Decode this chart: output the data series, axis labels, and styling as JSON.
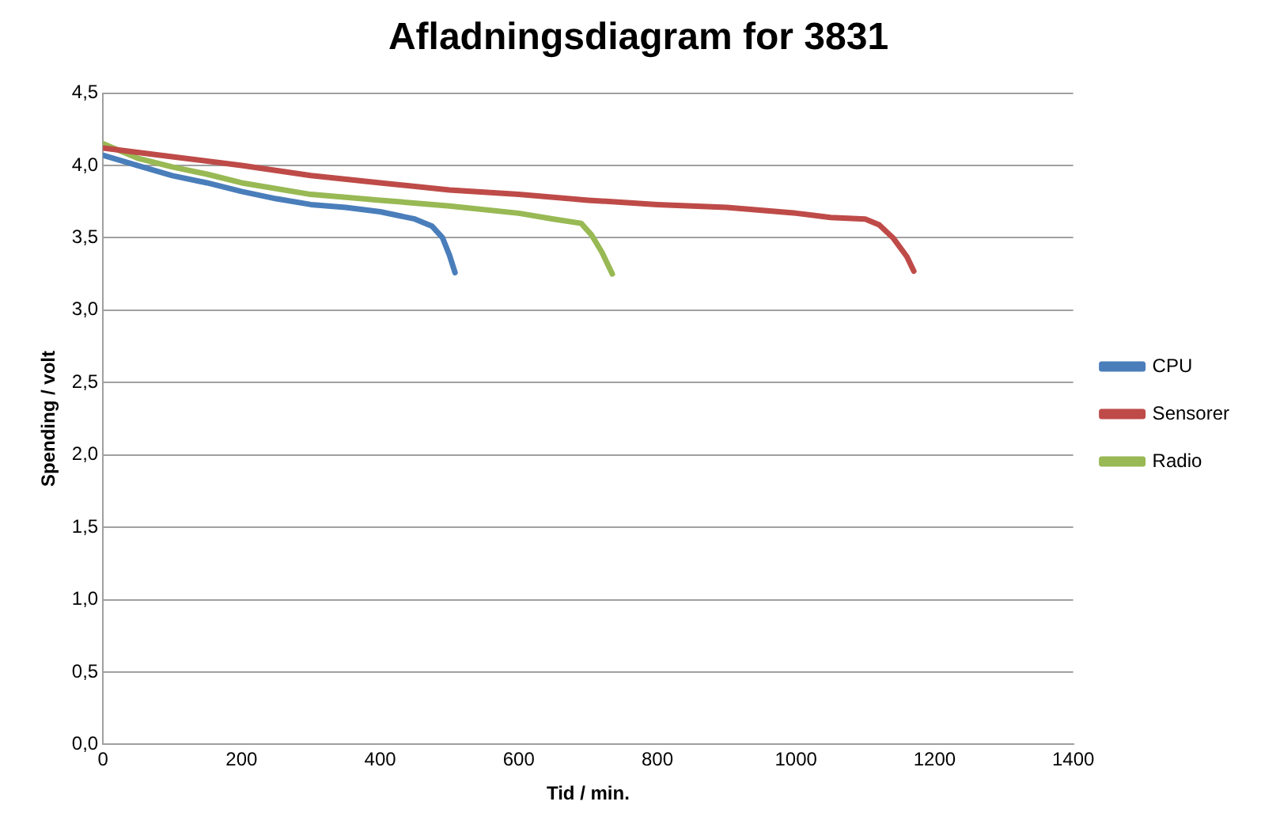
{
  "chart_data": {
    "type": "line",
    "title": "Afladningsdiagram for 3831",
    "xlabel": "Tid / min.",
    "ylabel": "Spending / volt",
    "xlim": [
      0,
      1400
    ],
    "xticks": [
      0,
      200,
      400,
      600,
      800,
      1000,
      1200,
      1400
    ],
    "ylim": [
      0,
      4.5
    ],
    "yticks": [
      {
        "value": 0,
        "label": "0,0"
      },
      {
        "value": 0.5,
        "label": "0,5"
      },
      {
        "value": 1,
        "label": "1,0"
      },
      {
        "value": 1.5,
        "label": "1,5"
      },
      {
        "value": 2,
        "label": "2,0"
      },
      {
        "value": 2.5,
        "label": "2,5"
      },
      {
        "value": 3,
        "label": "3,0"
      },
      {
        "value": 3.5,
        "label": "3,5"
      },
      {
        "value": 4,
        "label": "4,0"
      },
      {
        "value": 4.5,
        "label": "4,5"
      }
    ],
    "grid": "y",
    "legend": "right",
    "marker": "none",
    "series": [
      {
        "name": "CPU",
        "color": "#4a7ebb",
        "x": [
          0,
          50,
          100,
          150,
          200,
          250,
          300,
          350,
          400,
          450,
          475,
          490,
          500,
          508
        ],
        "values": [
          4.07,
          4.0,
          3.93,
          3.88,
          3.82,
          3.77,
          3.73,
          3.71,
          3.68,
          3.63,
          3.58,
          3.5,
          3.38,
          3.26
        ]
      },
      {
        "name": "Sensorer",
        "color": "#be4b48",
        "x": [
          0,
          100,
          200,
          300,
          400,
          500,
          600,
          700,
          800,
          900,
          1000,
          1050,
          1100,
          1120,
          1140,
          1160,
          1170
        ],
        "values": [
          4.12,
          4.06,
          4.0,
          3.93,
          3.88,
          3.83,
          3.8,
          3.76,
          3.73,
          3.71,
          3.67,
          3.64,
          3.63,
          3.59,
          3.5,
          3.37,
          3.27
        ]
      },
      {
        "name": "Radio",
        "color": "#98b954",
        "x": [
          0,
          50,
          100,
          150,
          200,
          300,
          400,
          500,
          600,
          650,
          690,
          705,
          720,
          735
        ],
        "values": [
          4.15,
          4.05,
          3.99,
          3.94,
          3.88,
          3.8,
          3.76,
          3.72,
          3.67,
          3.63,
          3.6,
          3.52,
          3.4,
          3.25
        ]
      }
    ]
  }
}
